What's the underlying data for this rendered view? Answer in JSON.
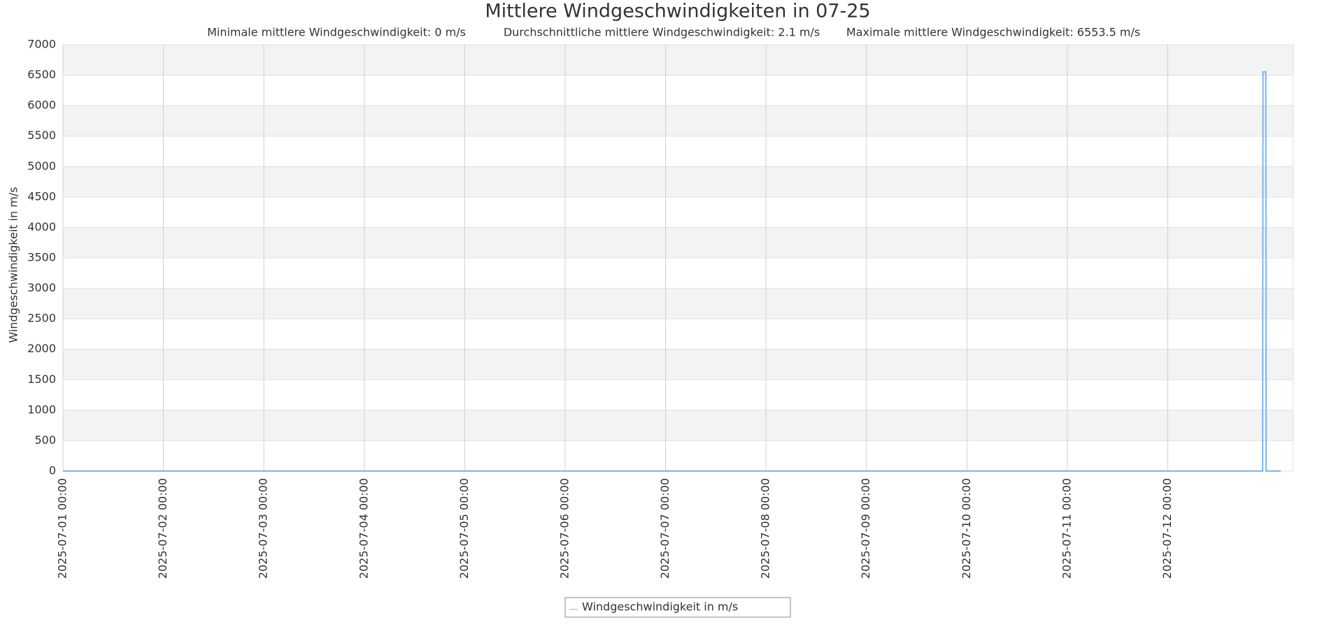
{
  "chart_data": {
    "type": "line",
    "title": "Mittlere Windgeschwindigkeiten in 07-25",
    "subtitle": [
      "Minimale mittlere Windgeschwindigkeit: 0 m/s",
      "Durchschnittliche mittlere Windgeschwindigkeit: 2.1 m/s",
      "Maximale mittlere Windgeschwindigkeit: 6553.5 m/s"
    ],
    "ylabel": "Windgeschwindigkeit in m/s",
    "x": [
      "2025-07-01 00:00",
      "2025-07-01 12:00",
      "2025-07-02 00:00",
      "2025-07-02 12:00",
      "2025-07-03 00:00",
      "2025-07-03 12:00",
      "2025-07-04 00:00",
      "2025-07-04 12:00",
      "2025-07-05 00:00",
      "2025-07-05 12:00",
      "2025-07-06 00:00",
      "2025-07-06 12:00",
      "2025-07-07 00:00",
      "2025-07-07 12:00",
      "2025-07-08 00:00",
      "2025-07-08 12:00",
      "2025-07-09 00:00",
      "2025-07-09 12:00",
      "2025-07-10 00:00",
      "2025-07-10 12:00",
      "2025-07-11 00:00",
      "2025-07-11 12:00",
      "2025-07-12 00:00",
      "2025-07-12 12:00",
      "2025-07-12 18:00",
      "2025-07-12 22:40",
      "2025-07-12 22:45",
      "2025-07-12 23:25",
      "2025-07-12 23:30",
      "2025-07-13 03:00"
    ],
    "series": [
      {
        "name": "Windgeschwindigkeit in m/s",
        "color": "#7cb5ec",
        "values": [
          0,
          0,
          0,
          0,
          0,
          0,
          0,
          0,
          0,
          0,
          0,
          0,
          0,
          0,
          0,
          0,
          0,
          0,
          0,
          0,
          0,
          0,
          0,
          0,
          0,
          0,
          6553.5,
          6553.5,
          0,
          0
        ]
      }
    ],
    "xlim": [
      "2025-07-01 00:00",
      "2025-07-13 06:00"
    ],
    "xticks": [
      "2025-07-01 00:00",
      "2025-07-02 00:00",
      "2025-07-03 00:00",
      "2025-07-04 00:00",
      "2025-07-05 00:00",
      "2025-07-06 00:00",
      "2025-07-07 00:00",
      "2025-07-08 00:00",
      "2025-07-09 00:00",
      "2025-07-10 00:00",
      "2025-07-11 00:00",
      "2025-07-12 00:00"
    ],
    "ylim": [
      0,
      7000
    ],
    "yticks": [
      0,
      500,
      1000,
      1500,
      2000,
      2500,
      3000,
      3500,
      4000,
      4500,
      5000,
      5500,
      6000,
      6500,
      7000
    ],
    "grid": true,
    "legend": "bottom"
  }
}
